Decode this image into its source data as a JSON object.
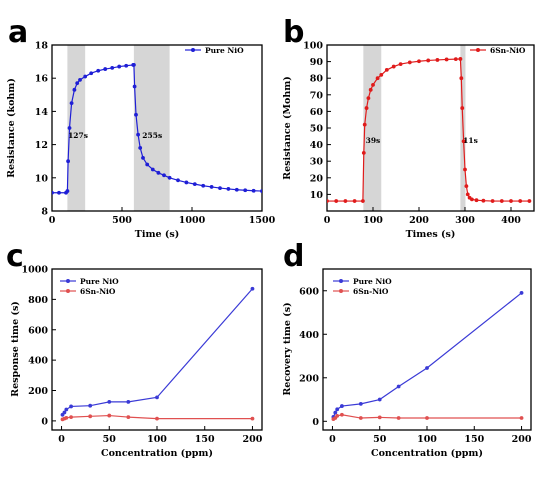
{
  "chart_data": [
    {
      "id": "a",
      "panel_label": "a",
      "type": "line",
      "xlabel": "Time (s)",
      "ylabel": "Resistance (kohm)",
      "xlim": [
        0,
        1500
      ],
      "ylim": [
        8,
        18
      ],
      "xticks": [
        0,
        500,
        1000,
        1500
      ],
      "yticks": [
        8,
        10,
        12,
        14,
        16,
        18
      ],
      "legend": "top-right",
      "shaded_regions": [
        [
          110,
          237
        ],
        [
          585,
          840
        ]
      ],
      "annotations": [
        {
          "text": "127s",
          "x": 115,
          "y": 12.4
        },
        {
          "text": "255s",
          "x": 645,
          "y": 12.4
        }
      ],
      "series": [
        {
          "name": "Pure NiO",
          "color": "#1f1fd6",
          "x": [
            0,
            50,
            100,
            110,
            115,
            125,
            140,
            160,
            180,
            200,
            237,
            280,
            330,
            380,
            430,
            480,
            530,
            580,
            585,
            590,
            600,
            615,
            630,
            650,
            680,
            720,
            760,
            800,
            840,
            900,
            960,
            1020,
            1080,
            1140,
            1200,
            1260,
            1320,
            1380,
            1440,
            1500
          ],
          "y": [
            9.1,
            9.1,
            9.1,
            9.2,
            11.0,
            13.0,
            14.5,
            15.3,
            15.7,
            15.9,
            16.1,
            16.3,
            16.45,
            16.55,
            16.62,
            16.7,
            16.75,
            16.8,
            16.8,
            15.5,
            13.8,
            12.6,
            11.8,
            11.2,
            10.8,
            10.5,
            10.3,
            10.15,
            10.0,
            9.85,
            9.72,
            9.62,
            9.52,
            9.45,
            9.38,
            9.33,
            9.28,
            9.25,
            9.22,
            9.2
          ]
        }
      ]
    },
    {
      "id": "b",
      "panel_label": "b",
      "type": "line",
      "xlabel": "Times (s)",
      "ylabel": "Resistance (Mohm)",
      "xlim": [
        0,
        450
      ],
      "ylim": [
        0,
        100
      ],
      "xticks": [
        0,
        100,
        200,
        300,
        400
      ],
      "yticks": [
        10,
        20,
        30,
        40,
        50,
        60,
        70,
        80,
        90,
        100
      ],
      "legend": "top-right",
      "shaded_regions": [
        [
          79,
          118
        ],
        [
          290,
          301
        ]
      ],
      "annotations": [
        {
          "text": "39s",
          "x": 84,
          "y": 41
        },
        {
          "text": "11s",
          "x": 296,
          "y": 41
        }
      ],
      "series": [
        {
          "name": "6Sn-NiO",
          "color": "#e01b1b",
          "x": [
            0,
            20,
            40,
            60,
            78,
            80,
            82,
            86,
            90,
            95,
            100,
            110,
            118,
            130,
            145,
            160,
            180,
            200,
            220,
            240,
            260,
            280,
            290,
            292,
            294,
            297,
            300,
            303,
            306,
            310,
            315,
            325,
            340,
            360,
            380,
            400,
            420,
            440
          ],
          "y": [
            6,
            6,
            6,
            6,
            6,
            35,
            52,
            62,
            68,
            73,
            76,
            80,
            82,
            85,
            87,
            88.5,
            89.5,
            90.2,
            90.7,
            91,
            91.3,
            91.5,
            91.6,
            80,
            62,
            42,
            25,
            15,
            10,
            8,
            7,
            6.5,
            6.2,
            6,
            6,
            6,
            6,
            6
          ]
        }
      ]
    },
    {
      "id": "c",
      "panel_label": "c",
      "type": "line",
      "xlabel": "Concentration (ppm)",
      "ylabel": "Response time (s)",
      "xlim": [
        -10,
        210
      ],
      "ylim": [
        -60,
        1000
      ],
      "xticks": [
        0,
        50,
        100,
        150,
        200
      ],
      "yticks": [
        0,
        200,
        400,
        600,
        800,
        1000
      ],
      "legend": "top-left",
      "series": [
        {
          "name": "Pure NiO",
          "color": "#3a3ad6",
          "x": [
            1,
            3,
            5,
            10,
            30,
            50,
            70,
            100,
            200
          ],
          "y": [
            40,
            55,
            75,
            95,
            100,
            125,
            125,
            155,
            870
          ]
        },
        {
          "name": "6Sn-NiO",
          "color": "#e05050",
          "x": [
            1,
            3,
            5,
            10,
            30,
            50,
            70,
            100,
            200
          ],
          "y": [
            10,
            15,
            20,
            25,
            30,
            35,
            25,
            15,
            15
          ]
        }
      ]
    },
    {
      "id": "d",
      "panel_label": "d",
      "type": "line",
      "xlabel": "Concentration (ppm)",
      "ylabel": "Recovery time (s)",
      "xlim": [
        -10,
        210
      ],
      "ylim": [
        -40,
        700
      ],
      "xticks": [
        0,
        50,
        100,
        150,
        200
      ],
      "yticks": [
        0,
        200,
        400,
        600
      ],
      "legend": "top-left",
      "series": [
        {
          "name": "Pure NiO",
          "color": "#3a3ad6",
          "x": [
            1,
            3,
            5,
            10,
            30,
            50,
            70,
            100,
            200
          ],
          "y": [
            20,
            40,
            55,
            70,
            80,
            100,
            160,
            245,
            590
          ]
        },
        {
          "name": "6Sn-NiO",
          "color": "#e05050",
          "x": [
            1,
            3,
            5,
            10,
            30,
            50,
            70,
            100,
            200
          ],
          "y": [
            10,
            15,
            25,
            30,
            15,
            18,
            15,
            15,
            15
          ]
        }
      ]
    }
  ]
}
